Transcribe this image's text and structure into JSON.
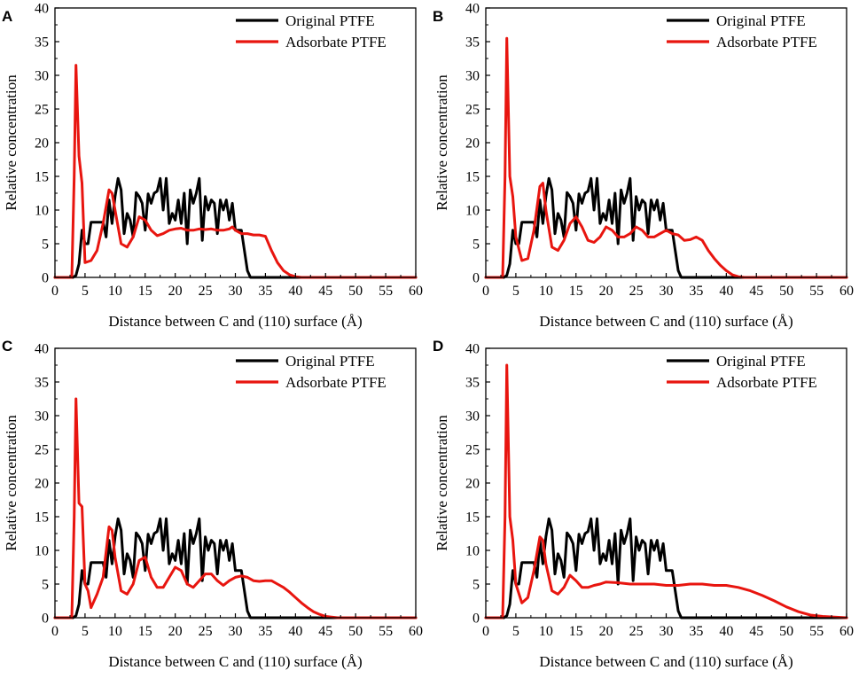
{
  "figure": {
    "description_title": ""
  },
  "colors": {
    "original": "#000000",
    "adsorbate": "#e8150f",
    "axis": "#000000"
  },
  "chart_data": [
    {
      "type": "line",
      "panel": "A",
      "title": "",
      "xlabel": "Distance between C and (110) surface (Å)",
      "ylabel": "Relative concentration",
      "xlim": [
        0,
        60
      ],
      "ylim": [
        0,
        40
      ],
      "xticks": [
        0,
        5,
        10,
        15,
        20,
        25,
        30,
        35,
        40,
        45,
        50,
        55,
        60
      ],
      "yticks": [
        0,
        5,
        10,
        15,
        20,
        25,
        30,
        35,
        40
      ],
      "legend": "top-right",
      "series": [
        {
          "name": "Original PTFE",
          "color": "#000000",
          "x": [
            0,
            3,
            3.5,
            4,
            4.5,
            5,
            5.5,
            6,
            7,
            8,
            8.5,
            9,
            9.5,
            10,
            10.5,
            11,
            11.5,
            12,
            12.5,
            13,
            13.5,
            14,
            14.5,
            15,
            15.5,
            16,
            16.5,
            17,
            17.5,
            18,
            18.5,
            19,
            19.5,
            20,
            20.5,
            21,
            21.5,
            22,
            22.5,
            23,
            23.5,
            24,
            24.5,
            25,
            25.5,
            26,
            26.5,
            27,
            27.5,
            28,
            28.5,
            29,
            29.5,
            30,
            30.5,
            31,
            31.5,
            32,
            32.5,
            33,
            60
          ],
          "y": [
            0,
            0,
            0.3,
            2,
            7,
            5,
            5,
            8.2,
            8.2,
            8.2,
            6,
            11.5,
            8,
            12,
            14.7,
            13,
            6.5,
            9.5,
            8.5,
            6,
            12.6,
            12,
            11,
            7,
            12.4,
            11,
            12.5,
            12.8,
            14.7,
            10,
            14.7,
            8,
            9.5,
            8.5,
            11.5,
            8,
            12.5,
            5,
            13,
            11,
            12.5,
            14.7,
            5.5,
            12,
            10,
            11.5,
            11,
            6.5,
            11.5,
            10,
            11.5,
            8.5,
            11,
            7,
            7,
            7,
            4,
            1,
            0,
            0,
            0
          ]
        },
        {
          "name": "Adsorbate PTFE",
          "color": "#e8150f",
          "x": [
            0,
            2.8,
            3.2,
            3.5,
            4,
            4.5,
            5,
            6,
            7,
            8,
            9,
            9.5,
            10,
            11,
            12,
            13,
            14,
            15,
            16,
            17,
            18,
            19,
            20,
            21,
            22,
            23,
            24,
            25,
            26,
            27,
            28,
            29,
            29.5,
            30,
            31,
            32,
            33,
            34,
            35,
            36,
            37,
            38,
            39,
            40,
            41,
            42,
            60
          ],
          "y": [
            0,
            0,
            15,
            31.5,
            18,
            14,
            2.2,
            2.5,
            4,
            8,
            13,
            12.5,
            10,
            5,
            4.5,
            6,
            9,
            8.5,
            7,
            6.2,
            6.5,
            7,
            7.2,
            7.3,
            7,
            7,
            7.2,
            7.1,
            7.2,
            7,
            7,
            7.2,
            7.5,
            7,
            6.5,
            6.5,
            6.3,
            6.3,
            6.1,
            4,
            2.2,
            1,
            0.4,
            0.1,
            0,
            0,
            0
          ]
        }
      ]
    },
    {
      "type": "line",
      "panel": "B",
      "title": "",
      "xlabel": "Distance between C and (110) surface (Å)",
      "ylabel": "Relative concentration",
      "xlim": [
        0,
        60
      ],
      "ylim": [
        0,
        40
      ],
      "xticks": [
        0,
        5,
        10,
        15,
        20,
        25,
        30,
        35,
        40,
        45,
        50,
        55,
        60
      ],
      "yticks": [
        0,
        5,
        10,
        15,
        20,
        25,
        30,
        35,
        40
      ],
      "legend": "top-right",
      "series": [
        {
          "name": "Original PTFE",
          "color": "#000000",
          "x": [
            0,
            3,
            3.5,
            4,
            4.5,
            5,
            5.5,
            6,
            7,
            8,
            8.5,
            9,
            9.5,
            10,
            10.5,
            11,
            11.5,
            12,
            12.5,
            13,
            13.5,
            14,
            14.5,
            15,
            15.5,
            16,
            16.5,
            17,
            17.5,
            18,
            18.5,
            19,
            19.5,
            20,
            20.5,
            21,
            21.5,
            22,
            22.5,
            23,
            23.5,
            24,
            24.5,
            25,
            25.5,
            26,
            26.5,
            27,
            27.5,
            28,
            28.5,
            29,
            29.5,
            30,
            30.5,
            31,
            31.5,
            32,
            32.5,
            33,
            60
          ],
          "y": [
            0,
            0,
            0.3,
            2,
            7,
            5,
            5,
            8.2,
            8.2,
            8.2,
            6,
            11.5,
            8,
            12,
            14.7,
            13,
            6.5,
            9.5,
            8.5,
            6,
            12.6,
            12,
            11,
            7,
            12.4,
            11,
            12.5,
            12.8,
            14.7,
            10,
            14.7,
            8,
            9.5,
            8.5,
            11.5,
            8,
            12.5,
            5,
            13,
            11,
            12.5,
            14.7,
            5.5,
            12,
            10,
            11.5,
            11,
            6.5,
            11.5,
            10,
            11.5,
            8.5,
            11,
            7,
            7,
            7,
            4,
            1,
            0,
            0,
            0
          ]
        },
        {
          "name": "Adsorbate PTFE",
          "color": "#e8150f",
          "x": [
            0,
            2.8,
            3.2,
            3.5,
            4,
            4.5,
            5,
            6,
            7,
            8,
            9,
            9.5,
            10,
            11,
            12,
            13,
            14,
            15,
            16,
            17,
            18,
            19,
            20,
            21,
            22,
            23,
            24,
            25,
            26,
            27,
            28,
            29,
            30,
            31,
            32,
            33,
            34,
            35,
            36,
            37,
            38,
            39,
            40,
            41,
            42,
            43,
            44,
            60
          ],
          "y": [
            0,
            0,
            15,
            35.5,
            15,
            12,
            6,
            2.5,
            2.8,
            7,
            13.5,
            14,
            10,
            4.5,
            4,
            5.5,
            8,
            9,
            7.5,
            5.5,
            5.2,
            6,
            7.5,
            7,
            6,
            6,
            6.5,
            7.5,
            7,
            6,
            6,
            6.5,
            7,
            6.5,
            6.3,
            5.5,
            5.6,
            6,
            5.5,
            4,
            2.8,
            1.8,
            1,
            0.4,
            0.1,
            0,
            0,
            0
          ]
        }
      ]
    },
    {
      "type": "line",
      "panel": "C",
      "title": "",
      "xlabel": "Distance between C and (110) surface (Å)",
      "ylabel": "Relative concentration",
      "xlim": [
        0,
        60
      ],
      "ylim": [
        0,
        40
      ],
      "xticks": [
        0,
        5,
        10,
        15,
        20,
        25,
        30,
        35,
        40,
        45,
        50,
        55,
        60
      ],
      "yticks": [
        0,
        5,
        10,
        15,
        20,
        25,
        30,
        35,
        40
      ],
      "legend": "top-right",
      "series": [
        {
          "name": "Original PTFE",
          "color": "#000000",
          "x": [
            0,
            3,
            3.5,
            4,
            4.5,
            5,
            5.5,
            6,
            7,
            8,
            8.5,
            9,
            9.5,
            10,
            10.5,
            11,
            11.5,
            12,
            12.5,
            13,
            13.5,
            14,
            14.5,
            15,
            15.5,
            16,
            16.5,
            17,
            17.5,
            18,
            18.5,
            19,
            19.5,
            20,
            20.5,
            21,
            21.5,
            22,
            22.5,
            23,
            23.5,
            24,
            24.5,
            25,
            25.5,
            26,
            26.5,
            27,
            27.5,
            28,
            28.5,
            29,
            29.5,
            30,
            30.5,
            31,
            31.5,
            32,
            32.5,
            33,
            60
          ],
          "y": [
            0,
            0,
            0.3,
            2,
            7,
            5,
            5,
            8.2,
            8.2,
            8.2,
            6,
            11.5,
            8,
            12,
            14.7,
            13,
            6.5,
            9.5,
            8.5,
            6,
            12.6,
            12,
            11,
            7,
            12.4,
            11,
            12.5,
            12.8,
            14.7,
            10,
            14.7,
            8,
            9.5,
            8.5,
            11.5,
            8,
            12.5,
            5,
            13,
            11,
            12.5,
            14.7,
            5.5,
            12,
            10,
            11.5,
            11,
            6.5,
            11.5,
            10,
            11.5,
            8.5,
            11,
            7,
            7,
            7,
            4,
            1,
            0,
            0,
            0
          ]
        },
        {
          "name": "Adsorbate PTFE",
          "color": "#e8150f",
          "x": [
            0,
            2.8,
            3.2,
            3.5,
            4,
            4.5,
            5,
            5.5,
            6,
            7,
            8,
            9,
            9.5,
            10,
            11,
            12,
            13,
            14,
            15,
            16,
            17,
            18,
            19,
            20,
            21,
            22,
            23,
            24,
            25,
            26,
            27,
            28,
            29,
            30,
            31,
            32,
            33,
            34,
            35,
            36,
            37,
            38,
            39,
            40,
            41,
            42,
            43,
            44,
            45,
            46,
            47,
            48,
            49,
            50,
            51,
            60
          ],
          "y": [
            0,
            0,
            15,
            32.5,
            17,
            16.5,
            5,
            4,
            1.5,
            3.5,
            6,
            13.5,
            13,
            9,
            4,
            3.5,
            5,
            8.5,
            9,
            6,
            4.5,
            4.5,
            6,
            7.5,
            7,
            5,
            4.5,
            5.5,
            6.5,
            6.5,
            5.5,
            4.8,
            5.5,
            6,
            6.2,
            6,
            5.5,
            5.4,
            5.5,
            5.5,
            5,
            4.5,
            3.8,
            3,
            2.2,
            1.5,
            0.9,
            0.5,
            0.2,
            0.1,
            0,
            0,
            0,
            0,
            0,
            0
          ]
        }
      ]
    },
    {
      "type": "line",
      "panel": "D",
      "title": "",
      "xlabel": "Distance between C and (110) surface (Å)",
      "ylabel": "Relative concentration",
      "xlim": [
        0,
        60
      ],
      "ylim": [
        0,
        40
      ],
      "xticks": [
        0,
        5,
        10,
        15,
        20,
        25,
        30,
        35,
        40,
        45,
        50,
        55,
        60
      ],
      "yticks": [
        0,
        5,
        10,
        15,
        20,
        25,
        30,
        35,
        40
      ],
      "legend": "top-right",
      "series": [
        {
          "name": "Original PTFE",
          "color": "#000000",
          "x": [
            0,
            3,
            3.5,
            4,
            4.5,
            5,
            5.5,
            6,
            7,
            8,
            8.5,
            9,
            9.5,
            10,
            10.5,
            11,
            11.5,
            12,
            12.5,
            13,
            13.5,
            14,
            14.5,
            15,
            15.5,
            16,
            16.5,
            17,
            17.5,
            18,
            18.5,
            19,
            19.5,
            20,
            20.5,
            21,
            21.5,
            22,
            22.5,
            23,
            23.5,
            24,
            24.5,
            25,
            25.5,
            26,
            26.5,
            27,
            27.5,
            28,
            28.5,
            29,
            29.5,
            30,
            30.5,
            31,
            31.5,
            32,
            32.5,
            33,
            60
          ],
          "y": [
            0,
            0,
            0.3,
            2,
            7,
            5,
            5,
            8.2,
            8.2,
            8.2,
            6,
            11.5,
            8,
            12,
            14.7,
            13,
            6.5,
            9.5,
            8.5,
            6,
            12.6,
            12,
            11,
            7,
            12.4,
            11,
            12.5,
            12.8,
            14.7,
            10,
            14.7,
            8,
            9.5,
            8.5,
            11.5,
            8,
            12.5,
            5,
            13,
            11,
            12.5,
            14.7,
            5.5,
            12,
            10,
            11.5,
            11,
            6.5,
            11.5,
            10,
            11.5,
            8.5,
            11,
            7,
            7,
            7,
            4,
            1,
            0,
            0,
            0
          ]
        },
        {
          "name": "Adsorbate PTFE",
          "color": "#e8150f",
          "x": [
            0,
            2.8,
            3.2,
            3.5,
            4,
            4.5,
            5,
            6,
            7,
            8,
            9,
            9.5,
            10,
            11,
            12,
            13,
            14,
            15,
            16,
            17,
            18,
            19,
            20,
            22,
            24,
            26,
            28,
            30,
            32,
            34,
            36,
            38,
            40,
            42,
            44,
            46,
            48,
            50,
            52,
            54,
            56,
            58,
            60
          ],
          "y": [
            0,
            0,
            15,
            37.5,
            15,
            11.5,
            5,
            2.2,
            3,
            7,
            12,
            11.5,
            8,
            4,
            3.5,
            4.5,
            6.3,
            5.5,
            4.5,
            4.5,
            4.8,
            5,
            5.3,
            5.2,
            5,
            5,
            5,
            4.8,
            4.8,
            5,
            5,
            4.8,
            4.8,
            4.5,
            4,
            3.3,
            2.5,
            1.6,
            0.9,
            0.4,
            0.2,
            0.1,
            0
          ]
        }
      ]
    }
  ]
}
